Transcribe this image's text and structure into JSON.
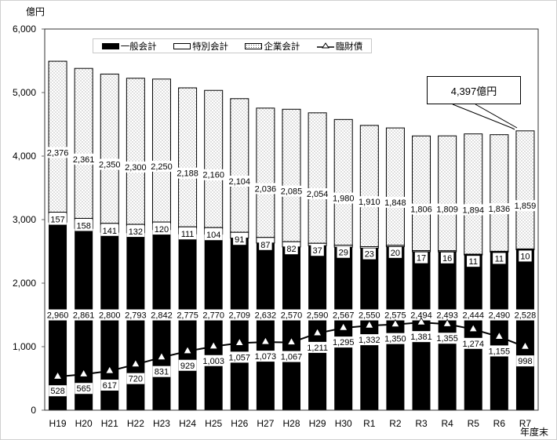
{
  "chart_data": {
    "type": "bar",
    "stacked": true,
    "title": "",
    "ylabel": "億円",
    "xlabel": "年度末",
    "ylim": [
      0,
      6000
    ],
    "yticks": [
      0,
      1000,
      2000,
      3000,
      4000,
      5000,
      6000
    ],
    "ytick_labels": [
      "0",
      "1,000",
      "2,000",
      "3,000",
      "4,000",
      "5,000",
      "6,000"
    ],
    "categories": [
      "H19",
      "H20",
      "H21",
      "H22",
      "H23",
      "H24",
      "H25",
      "H26",
      "H27",
      "H28",
      "H29",
      "H30",
      "R1",
      "R2",
      "R3",
      "R4",
      "R5",
      "R6",
      "R7"
    ],
    "series": [
      {
        "name": "一般会計",
        "type": "bar",
        "color": "#000000",
        "values": [
          2960,
          2861,
          2800,
          2793,
          2842,
          2775,
          2770,
          2709,
          2632,
          2570,
          2590,
          2567,
          2550,
          2575,
          2494,
          2493,
          2444,
          2490,
          2528
        ],
        "labels": [
          "2,960",
          "2,861",
          "2,800",
          "2,793",
          "2,842",
          "2,775",
          "2,770",
          "2,709",
          "2,632",
          "2,570",
          "2,590",
          "2,567",
          "2,550",
          "2,575",
          "2,494",
          "2,493",
          "2,444",
          "2,490",
          "2,528"
        ]
      },
      {
        "name": "特別会計",
        "type": "bar",
        "color": "#ffffff",
        "values": [
          157,
          158,
          141,
          132,
          120,
          111,
          104,
          91,
          87,
          82,
          37,
          29,
          23,
          20,
          17,
          16,
          11,
          11,
          10
        ],
        "labels": [
          "157",
          "158",
          "141",
          "132",
          "120",
          "111",
          "104",
          "91",
          "87",
          "82",
          "37",
          "29",
          "23",
          "20",
          "17",
          "16",
          "11",
          "11",
          "10"
        ]
      },
      {
        "name": "企業会計",
        "type": "bar",
        "pattern": "dotted",
        "values": [
          2376,
          2361,
          2350,
          2300,
          2250,
          2188,
          2160,
          2104,
          2036,
          2085,
          2054,
          1980,
          1910,
          1848,
          1806,
          1809,
          1894,
          1836,
          1859
        ],
        "labels": [
          "2,376",
          "2,361",
          "2,350",
          "2,300",
          "2,250",
          "2,188",
          "2,160",
          "2,104",
          "2,036",
          "2,085",
          "2,054",
          "1,980",
          "1,910",
          "1,848",
          "1,806",
          "1,809",
          "1,894",
          "1,836",
          "1,859"
        ]
      },
      {
        "name": "臨財債",
        "type": "line",
        "marker": "triangle",
        "color": "#000000",
        "values": [
          528,
          565,
          617,
          720,
          831,
          929,
          1003,
          1057,
          1073,
          1067,
          1211,
          1295,
          1332,
          1350,
          1381,
          1355,
          1274,
          1155,
          998
        ],
        "labels": [
          "528",
          "565",
          "617",
          "720",
          "831",
          "929",
          "1,003",
          "1,057",
          "1,073",
          "1,067",
          "1,211",
          "1,295",
          "1,332",
          "1,350",
          "1,381",
          "1,355",
          "1,274",
          "1,155",
          "998"
        ]
      }
    ],
    "annotations": [
      {
        "text": "4,397億円",
        "target": "R7"
      }
    ],
    "legend_position": "top",
    "grid": false
  },
  "labels": {
    "y_unit": "億円",
    "x_unit": "年度末",
    "callout": "4,397億円",
    "legend": [
      "一般会計",
      "特別会計",
      "企業会計",
      "臨財債"
    ]
  }
}
